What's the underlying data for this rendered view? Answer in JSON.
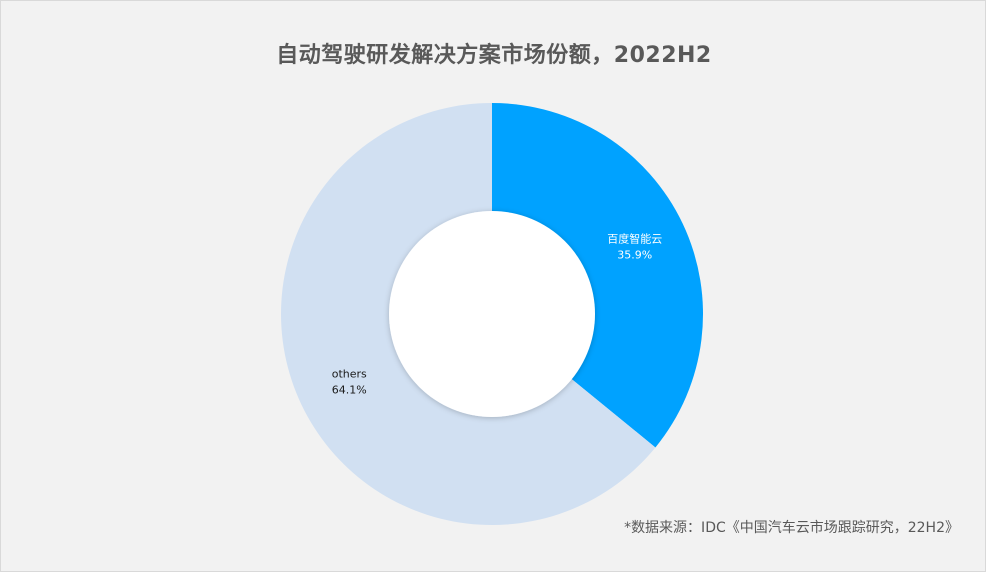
{
  "chart_data": {
    "type": "pie",
    "variant": "donut",
    "title": "自动驾驶研发解决方案市场份额，2022H2",
    "start_angle_deg": 0,
    "direction": "clockwise",
    "slices": [
      {
        "name": "百度智能云",
        "value": 35.9,
        "label": "35.9%",
        "color": "#00a2ff",
        "label_color": "#ffffff"
      },
      {
        "name": "others",
        "value": 64.1,
        "label": "64.1%",
        "color": "#d1e0f2",
        "label_color": "#1a1a1a"
      }
    ]
  },
  "source_note": "*数据来源：IDC《中国汽车云市场跟踪研究，22H2》"
}
